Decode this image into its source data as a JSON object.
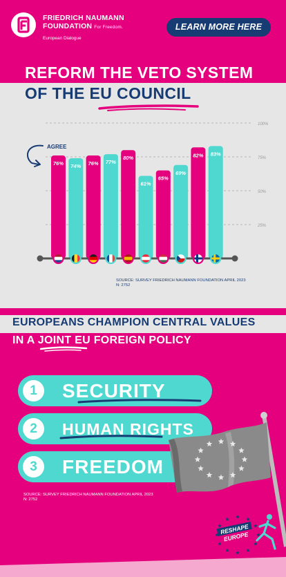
{
  "header": {
    "brand_line1": "FRIEDRICH NAUMANN",
    "brand_line2": "FOUNDATION",
    "brand_tagline": "For Freedom.",
    "brand_sub": "European Dialogue",
    "cta_label": "LEARN MORE HERE",
    "logo_icon": "fnf-logo-icon"
  },
  "title": {
    "line1": "REFORM THE VETO SYSTEM",
    "line2": "OF THE EU COUNCIL"
  },
  "chart_data": {
    "type": "bar",
    "annotation": "AGREE",
    "categories": [
      "Netherlands",
      "Belgium",
      "Germany",
      "France",
      "Spain",
      "Austria",
      "Hungary",
      "Czech Republic",
      "Finland",
      "Sweden"
    ],
    "values": [
      76,
      74,
      76,
      77,
      80,
      61,
      65,
      69,
      82,
      83
    ],
    "data_labels": [
      "76%",
      "74%",
      "76%",
      "77%",
      "80%",
      "61%",
      "65%",
      "69%",
      "82%",
      "83%"
    ],
    "yticks": [
      "25%",
      "50%",
      "75%",
      "100%"
    ],
    "ylim": [
      0,
      100
    ],
    "grid": true,
    "colors": [
      "#e5007d",
      "#4fd8cf"
    ],
    "source": "SOURCE: SURVEY FRIEDRICH NAUMANN FOUNDATION APRIL 2023",
    "n": "N: 2752"
  },
  "section2": {
    "line1": "EUROPEANS CHAMPION CENTRAL VALUES",
    "line2": "IN A JOINT EU FOREIGN POLICY",
    "values": [
      {
        "rank": "1",
        "label": "SECURITY"
      },
      {
        "rank": "2",
        "label": "HUMAN RIGHTS"
      },
      {
        "rank": "3",
        "label": "FREEDOM"
      }
    ],
    "source": "SOURCE: SURVEY FRIEDRICH NAUMANN FOUNDATION APRIL 2023",
    "n": "N: 2752"
  },
  "badge": {
    "line1": "RESHAPE",
    "line2": "EUROPE"
  },
  "colors": {
    "magenta": "#e5007d",
    "turquoise": "#4fd8cf",
    "navy": "#173b73",
    "light_grey": "#e6e6e6",
    "light_pink": "#f5a9cf"
  }
}
